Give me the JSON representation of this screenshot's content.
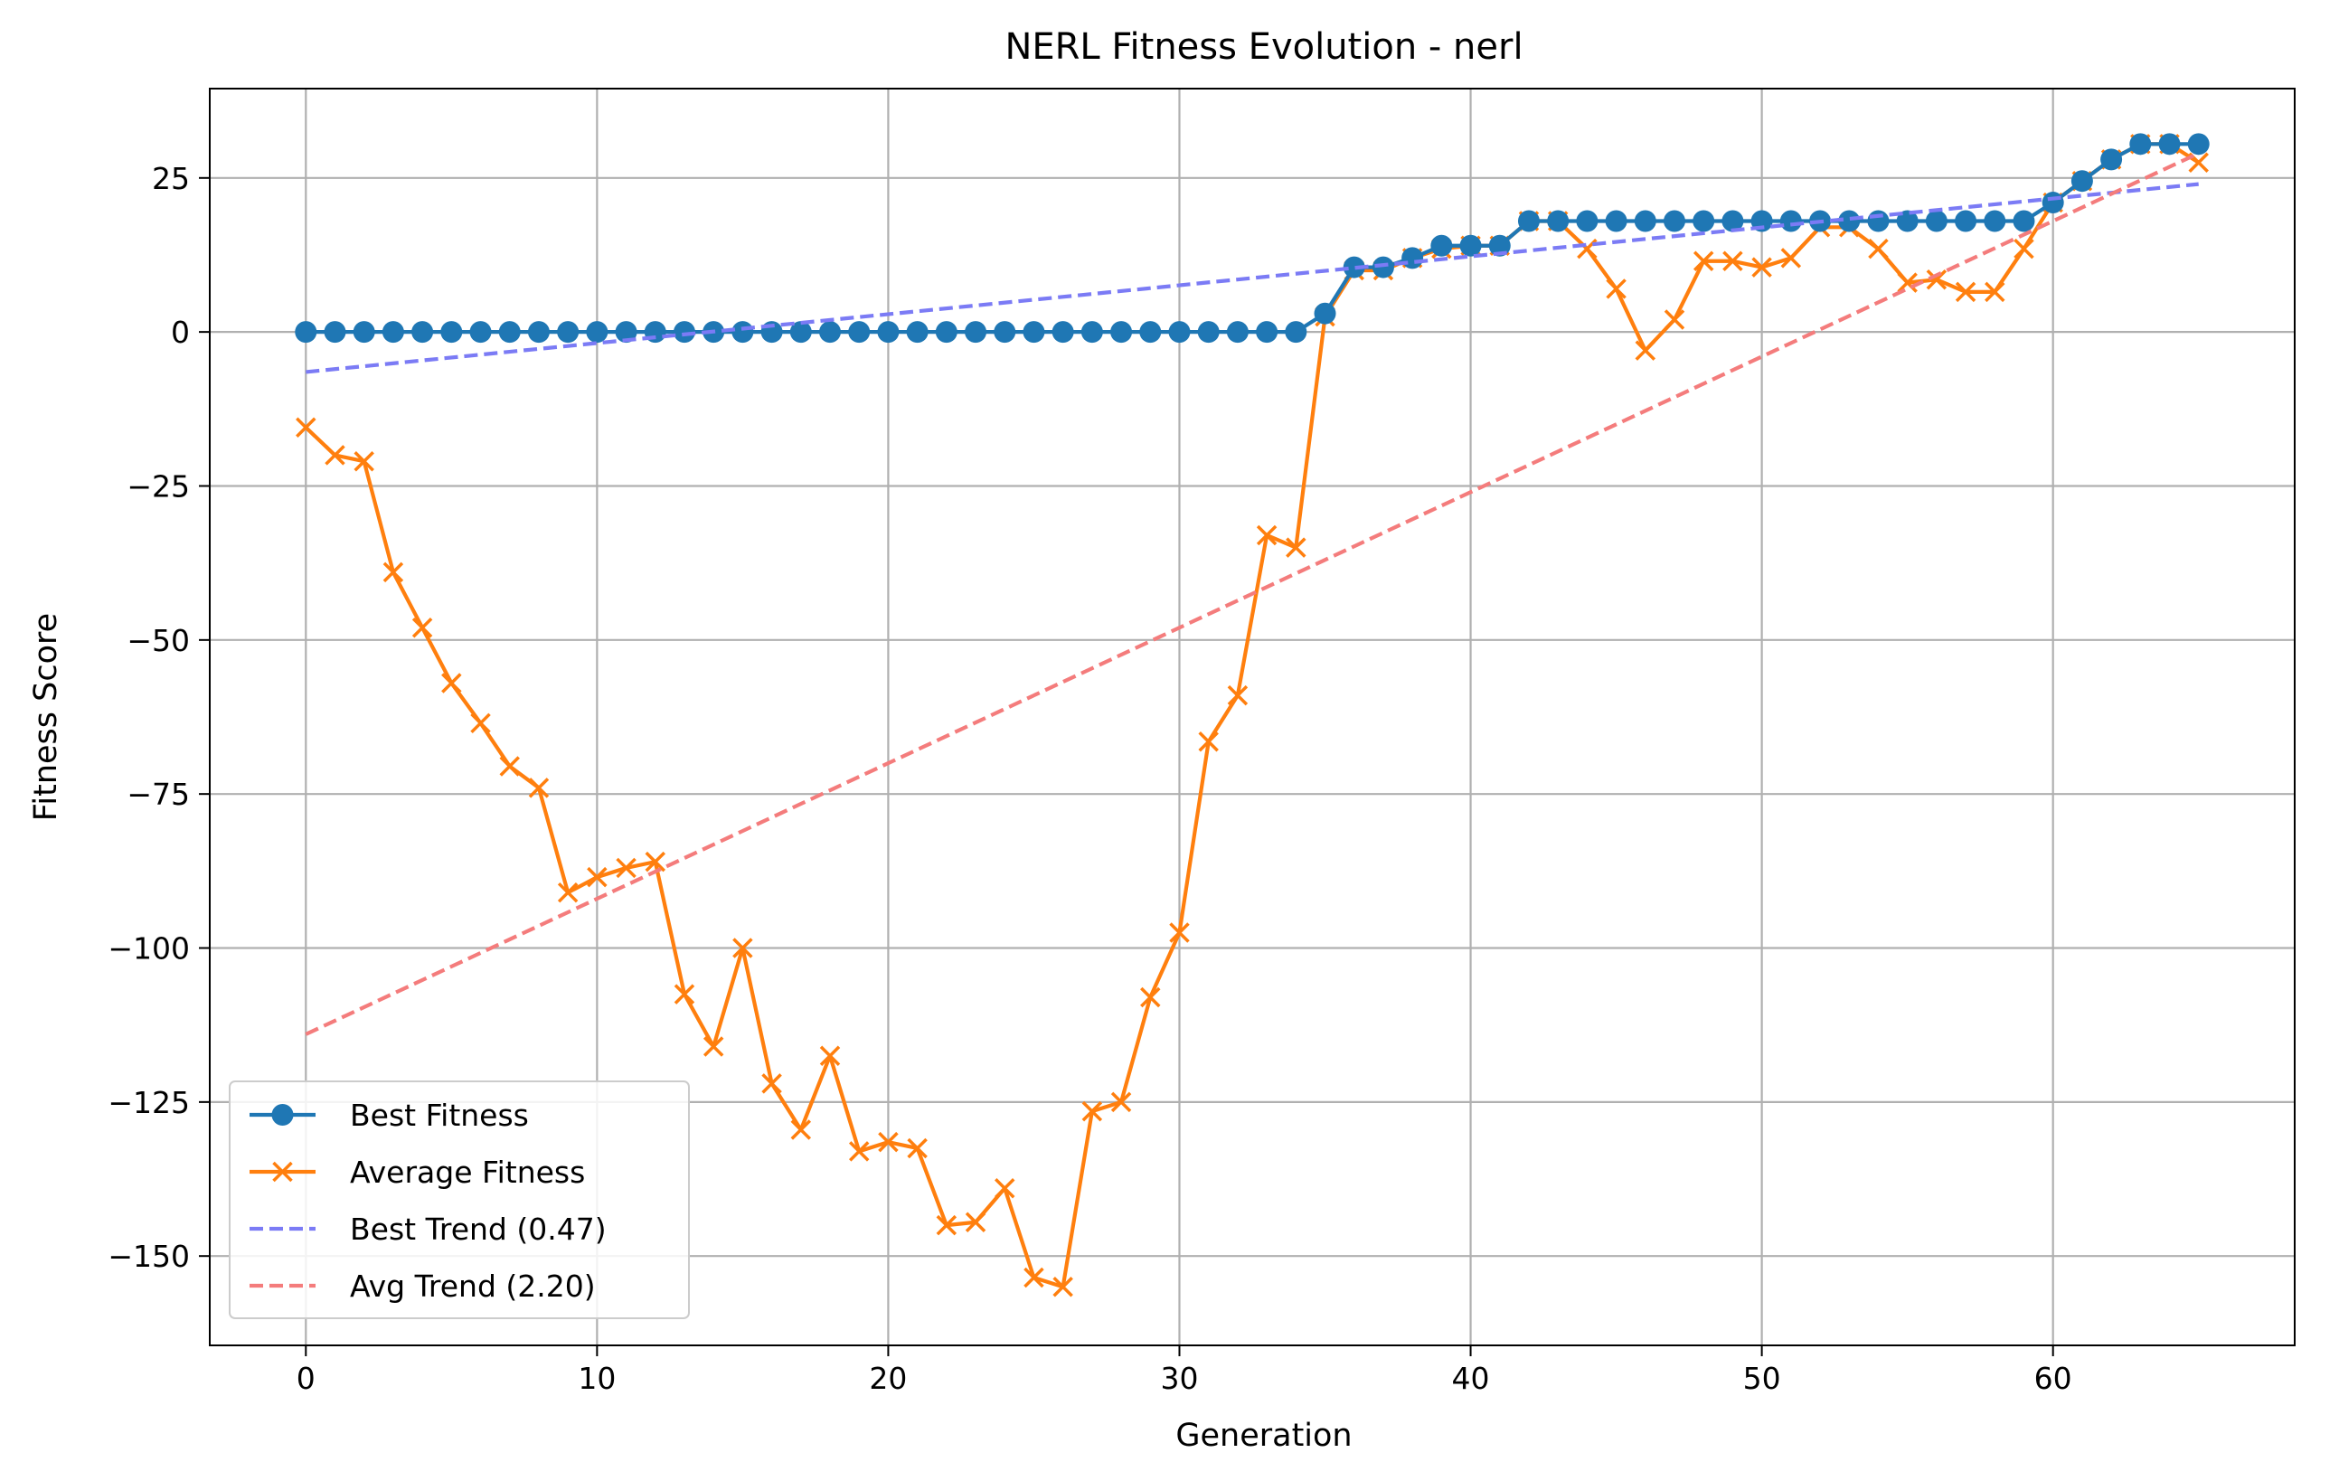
{
  "chart_data": {
    "type": "line",
    "title": "NERL Fitness Evolution - nerl",
    "xlabel": "Generation",
    "ylabel": "Fitness Score",
    "xlim": [
      -3.3,
      68.3
    ],
    "ylim": [
      -164.5,
      39.5
    ],
    "xticks": [
      0,
      10,
      20,
      30,
      40,
      50,
      60
    ],
    "yticks": [
      25,
      0,
      -25,
      -50,
      -75,
      -100,
      -125,
      -150
    ],
    "ytick_labels": [
      "25",
      "0",
      "−25",
      "−50",
      "−75",
      "−100",
      "−125",
      "−150"
    ],
    "grid": true,
    "legend_position": "lower-left",
    "series": [
      {
        "name": "Best Fitness",
        "style": "line-marker-circle",
        "color": "#1f77b4",
        "x": [
          0,
          1,
          2,
          3,
          4,
          5,
          6,
          7,
          8,
          9,
          10,
          11,
          12,
          13,
          14,
          15,
          16,
          17,
          18,
          19,
          20,
          21,
          22,
          23,
          24,
          25,
          26,
          27,
          28,
          29,
          30,
          31,
          32,
          33,
          34,
          35,
          36,
          37,
          38,
          39,
          40,
          41,
          42,
          43,
          44,
          45,
          46,
          47,
          48,
          49,
          50,
          51,
          52,
          53,
          54,
          55,
          56,
          57,
          58,
          59,
          60,
          61,
          62,
          63,
          64,
          65
        ],
        "values": [
          0,
          0,
          0,
          0,
          0,
          0,
          0,
          0,
          0,
          0,
          0,
          0,
          0,
          0,
          0,
          0,
          0,
          0,
          0,
          0,
          0,
          0,
          0,
          0,
          0,
          0,
          0,
          0,
          0,
          0,
          0,
          0,
          0,
          0,
          0,
          3,
          10.5,
          10.5,
          12,
          14,
          14,
          14,
          18,
          18,
          18,
          18,
          18,
          18,
          18,
          18,
          18,
          18,
          18,
          18,
          18,
          18,
          18,
          18,
          18,
          18,
          21,
          24.5,
          28,
          30.5,
          30.5,
          30.5
        ]
      },
      {
        "name": "Average Fitness",
        "style": "line-marker-x",
        "color": "#ff7f0e",
        "x": [
          0,
          1,
          2,
          3,
          4,
          5,
          6,
          7,
          8,
          9,
          10,
          11,
          12,
          13,
          14,
          15,
          16,
          17,
          18,
          19,
          20,
          21,
          22,
          23,
          24,
          25,
          26,
          27,
          28,
          29,
          30,
          31,
          32,
          33,
          34,
          35,
          36,
          37,
          38,
          39,
          40,
          41,
          42,
          43,
          44,
          45,
          46,
          47,
          48,
          49,
          50,
          51,
          52,
          53,
          54,
          55,
          56,
          57,
          58,
          59,
          60,
          61,
          62,
          63,
          64,
          65
        ],
        "values": [
          -15.5,
          -20,
          -21,
          -39,
          -48,
          -57,
          -63.5,
          -70.5,
          -74,
          -91,
          -88.5,
          -87,
          -86,
          -107.5,
          -116,
          -100,
          -122,
          -129.5,
          -117.5,
          -133,
          -131.5,
          -132.5,
          -145,
          -144.5,
          -139,
          -153.5,
          -155,
          -126.5,
          -125,
          -108,
          -97.5,
          -66.5,
          -59,
          -33,
          -35,
          2.5,
          10,
          10,
          12,
          13.5,
          14,
          14,
          18,
          18,
          13.5,
          7,
          -3,
          2,
          11.5,
          11.5,
          10.5,
          12,
          17,
          17,
          13.5,
          8,
          8.5,
          6.5,
          6.5,
          13.5,
          21,
          24.5,
          28,
          30.5,
          30.5,
          27.5
        ]
      },
      {
        "name": "Best Trend (0.47)",
        "style": "dashed",
        "color": "#7b7bf5",
        "x": [
          0,
          65
        ],
        "values": [
          -6.5,
          24
        ]
      },
      {
        "name": "Avg Trend (2.20)",
        "style": "dashed",
        "color": "#f47c7c",
        "x": [
          0,
          65
        ],
        "values": [
          -114,
          29
        ]
      }
    ]
  }
}
